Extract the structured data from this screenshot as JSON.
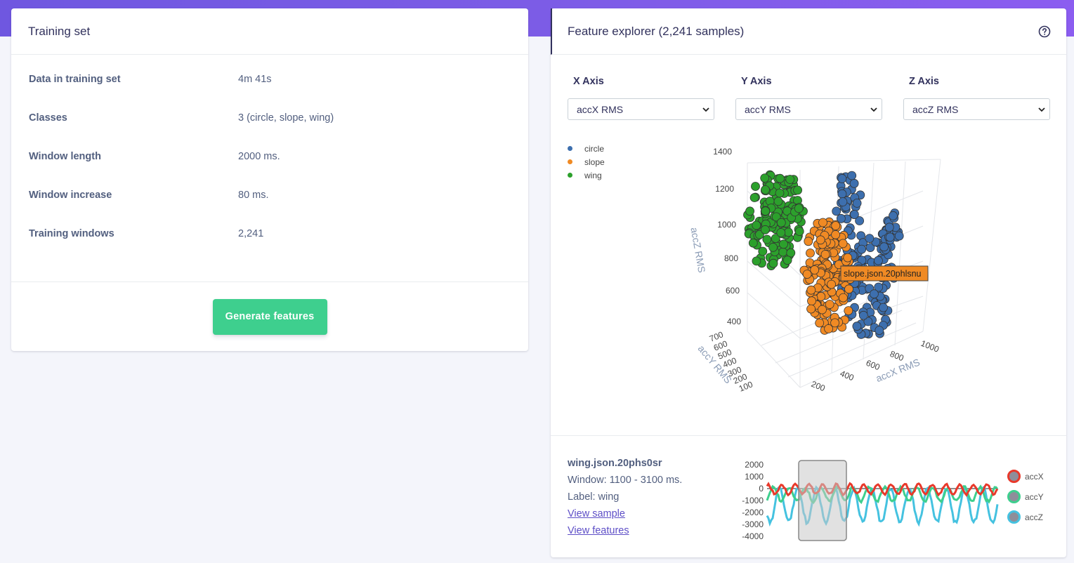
{
  "training_set": {
    "title": "Training set",
    "rows": [
      {
        "label": "Data in training set",
        "value": "4m 41s"
      },
      {
        "label": "Classes",
        "value": "3 (circle, slope, wing)"
      },
      {
        "label": "Window length",
        "value": "2000 ms."
      },
      {
        "label": "Window increase",
        "value": "80 ms."
      },
      {
        "label": "Training windows",
        "value": "2,241"
      }
    ],
    "generate_button": "Generate features"
  },
  "explorer": {
    "title": "Feature explorer (2,241 samples)",
    "help_icon": "question-circle-icon",
    "axes": [
      {
        "label": "X Axis",
        "selected": "accX RMS"
      },
      {
        "label": "Y Axis",
        "selected": "accY RMS"
      },
      {
        "label": "Z Axis",
        "selected": "accZ RMS"
      }
    ],
    "legend": [
      {
        "name": "circle",
        "color": "#3d6fae"
      },
      {
        "name": "slope",
        "color": "#f08a24"
      },
      {
        "name": "wing",
        "color": "#2ca02c"
      }
    ],
    "plot": {
      "z_axis_title": "accZ RMS",
      "z_ticks": [
        "1400",
        "1200",
        "1000",
        "800",
        "600",
        "400"
      ],
      "y_axis_title": "accY RMS",
      "y_ticks": [
        "700",
        "600",
        "500",
        "400",
        "300",
        "200",
        "100"
      ],
      "x_axis_title": "accX RMS",
      "x_ticks": [
        "1000",
        "800",
        "600",
        "400",
        "200"
      ],
      "tooltip": "slope.json.20phlsnu",
      "tooltip_color": "#f08a24"
    }
  },
  "sample": {
    "name": "wing.json.20phs0sr",
    "window": "Window: 1100 - 3100 ms.",
    "label": "Label: wing",
    "view_sample": "View sample",
    "view_features": "View features"
  },
  "signal_chart": {
    "y_ticks": [
      "2000",
      "1000",
      "0",
      "-1000",
      "-2000",
      "-3000",
      "-4000"
    ],
    "series": [
      {
        "name": "accX",
        "color": "#e8392b"
      },
      {
        "name": "accY",
        "color": "#3ecf8e"
      },
      {
        "name": "accZ",
        "color": "#45c2e0"
      }
    ]
  }
}
